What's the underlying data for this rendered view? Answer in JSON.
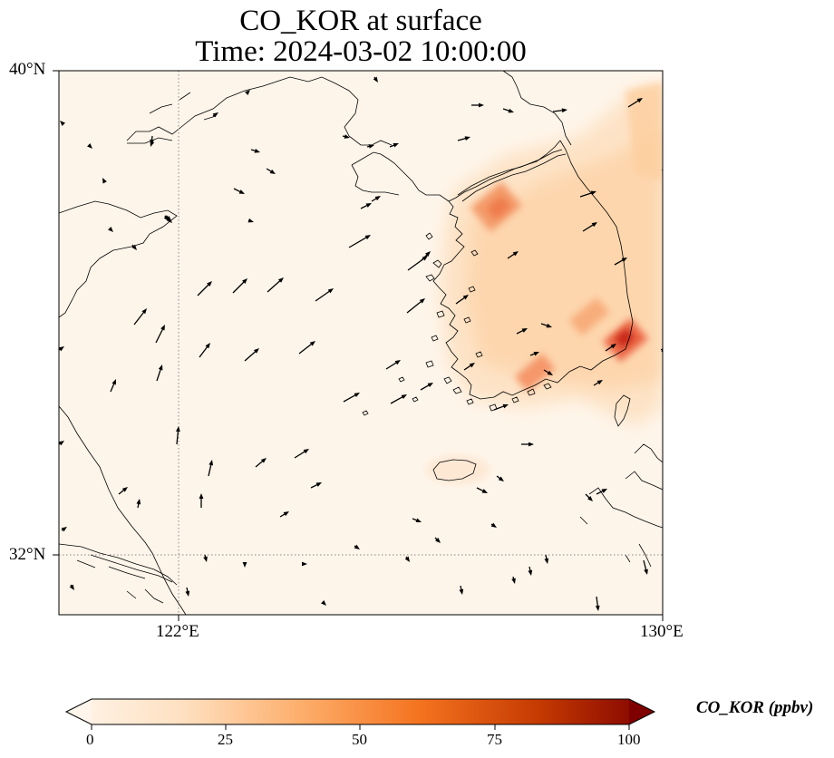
{
  "figure": {
    "title_line1": "CO_KOR at surface",
    "title_line2": "Time: 2024-03-02 10:00:00"
  },
  "axes": {
    "lat_ticks": [
      "40°N",
      "32°N"
    ],
    "lon_ticks": [
      "122°E",
      "130°E"
    ]
  },
  "colorbar": {
    "label": "CO_KOR (ppbv)",
    "ticks": [
      "0",
      "25",
      "50",
      "75",
      "100"
    ],
    "colors": [
      "#fff5eb",
      "#fdd9b3",
      "#fdab67",
      "#f4711c",
      "#d34401",
      "#a53603",
      "#7f2704"
    ]
  },
  "chart_data": {
    "type": "heatmap",
    "title": "CO_KOR at surface\nTime: 2024-03-02 10:00:00",
    "variable": "CO_KOR",
    "units": "ppbv",
    "range": [
      0,
      100
    ],
    "extend": "both",
    "colormap": "Oranges",
    "lon_range": [
      120,
      130
    ],
    "lat_range": [
      31,
      40
    ],
    "gridlines": {
      "lon": [
        122
      ],
      "lat": [
        32
      ],
      "style": "dotted"
    },
    "overlay": "wind vectors",
    "hotspots": [
      {
        "lon": 127.2,
        "lat": 37.5,
        "value": 40
      },
      {
        "lon": 129.0,
        "lat": 35.1,
        "value": 70
      },
      {
        "lon": 128.8,
        "lat": 35.9,
        "value": 35
      },
      {
        "lon": 127.9,
        "lat": 34.9,
        "value": 35
      }
    ]
  }
}
